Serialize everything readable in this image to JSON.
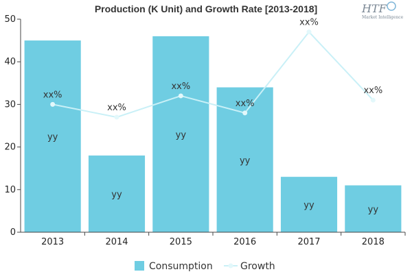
{
  "logo": {
    "text": "HTF",
    "subtext": "Market Intelligence"
  },
  "colors": {
    "bar": "#6fcde2",
    "line": "#c9f0f7",
    "point": "#e3f8fb",
    "axis": "#444444"
  },
  "chart_data": {
    "type": "bar",
    "title": "Production (K Unit) and Growth Rate [2013-2018]",
    "categories": [
      "2013",
      "2014",
      "2015",
      "2016",
      "2017",
      "2018"
    ],
    "series": [
      {
        "name": "Consumption",
        "type": "bar",
        "values": [
          45,
          18,
          46,
          34,
          13,
          11
        ],
        "labels": [
          "yy",
          "yy",
          "yy",
          "yy",
          "yy",
          "yy"
        ]
      },
      {
        "name": "Growth",
        "type": "line",
        "values": [
          30,
          27,
          32,
          28,
          47,
          31
        ],
        "labels": [
          "xx%",
          "xx%",
          "xx%",
          "xx%",
          "xx%",
          "xx%"
        ]
      }
    ],
    "ylim": [
      0,
      50
    ],
    "yticks": [
      0,
      10,
      20,
      30,
      40,
      50
    ],
    "grid": false,
    "legend": "bottom"
  }
}
